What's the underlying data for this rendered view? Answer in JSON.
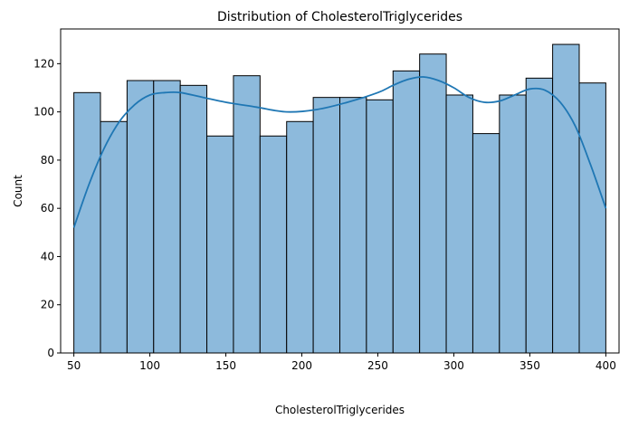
{
  "chart_data": {
    "type": "bar",
    "title": "Distribution of CholesterolTriglycerides",
    "xlabel": "CholesterolTriglycerides",
    "ylabel": "Count",
    "xlim": [
      41.3,
      408.7
    ],
    "ylim": [
      0,
      134.4
    ],
    "xticks": [
      50,
      100,
      150,
      200,
      250,
      300,
      350,
      400
    ],
    "yticks": [
      0,
      20,
      40,
      60,
      80,
      100,
      120
    ],
    "bins": {
      "edges": [
        50,
        67.5,
        85,
        102.5,
        120,
        137.5,
        155,
        172.5,
        190,
        207.5,
        225,
        242.5,
        260,
        277.5,
        295,
        312.5,
        330,
        347.5,
        365,
        382.5,
        400
      ],
      "counts": [
        108,
        96,
        113,
        113,
        111,
        90,
        115,
        90,
        96,
        106,
        106,
        105,
        117,
        124,
        107,
        91,
        107,
        114,
        128,
        112
      ]
    },
    "kde": {
      "x": [
        50,
        60,
        70,
        80,
        90,
        100,
        110,
        120,
        135,
        150,
        170,
        190,
        210,
        230,
        250,
        260,
        270,
        280,
        290,
        300,
        310,
        320,
        330,
        340,
        350,
        360,
        370,
        380,
        390,
        400
      ],
      "y": [
        52,
        70,
        85,
        96,
        103,
        107,
        108,
        108,
        106,
        104,
        102,
        100,
        101,
        104,
        108,
        111,
        113.5,
        114.5,
        113,
        110,
        106,
        104,
        104.5,
        107,
        109.5,
        109,
        104,
        94,
        78,
        60
      ]
    },
    "colors": {
      "bar_fill": "#8dbadc",
      "bar_edge": "#000000",
      "kde_line": "#1f77b4"
    },
    "grid": false,
    "legend": "none"
  }
}
